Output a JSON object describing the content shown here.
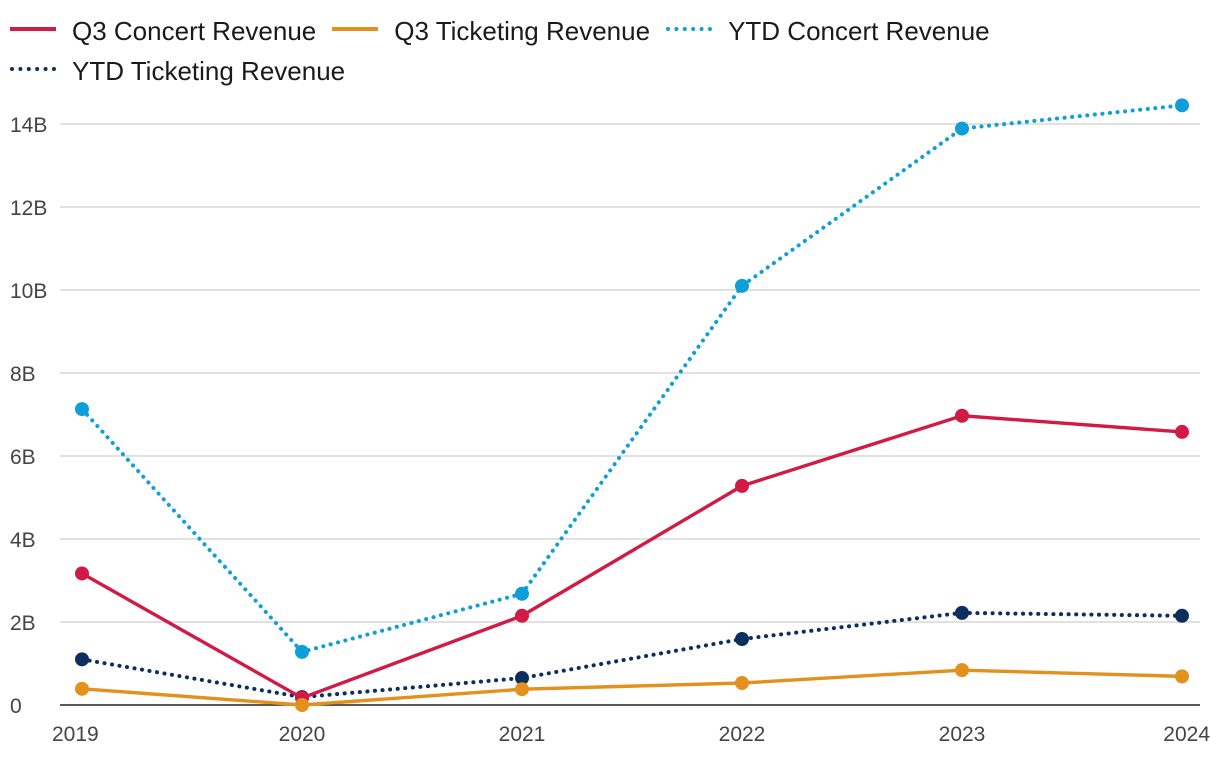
{
  "chart_data": {
    "type": "line",
    "title": "",
    "xlabel": "",
    "ylabel": "",
    "categories": [
      "2019",
      "2020",
      "2021",
      "2022",
      "2023",
      "2024"
    ],
    "y_ticks": [
      0,
      2,
      4,
      6,
      8,
      10,
      12,
      14
    ],
    "y_tick_labels": [
      "0",
      "2B",
      "4B",
      "6B",
      "8B",
      "10B",
      "12B",
      "14B"
    ],
    "ylim": [
      0,
      14.5
    ],
    "y_unit": "B",
    "grid": true,
    "legend_position": "top",
    "series": [
      {
        "name": "Q3 Concert Revenue",
        "style": "solid",
        "color": "#d11a44",
        "values": [
          3.17,
          0.17,
          2.15,
          5.28,
          6.97,
          6.58
        ]
      },
      {
        "name": "Q3 Ticketing Revenue",
        "style": "solid",
        "color": "#e3901d",
        "values": [
          0.39,
          0.0,
          0.38,
          0.53,
          0.84,
          0.69
        ]
      },
      {
        "name": "YTD Concert Revenue",
        "style": "dotted",
        "color": "#0f9fd8",
        "values": [
          7.13,
          1.28,
          2.68,
          10.1,
          13.89,
          14.45
        ]
      },
      {
        "name": "YTD Ticketing Revenue",
        "style": "dotted",
        "color": "#0c2f5e",
        "values": [
          1.1,
          0.19,
          0.65,
          1.59,
          2.22,
          2.15
        ]
      }
    ]
  }
}
